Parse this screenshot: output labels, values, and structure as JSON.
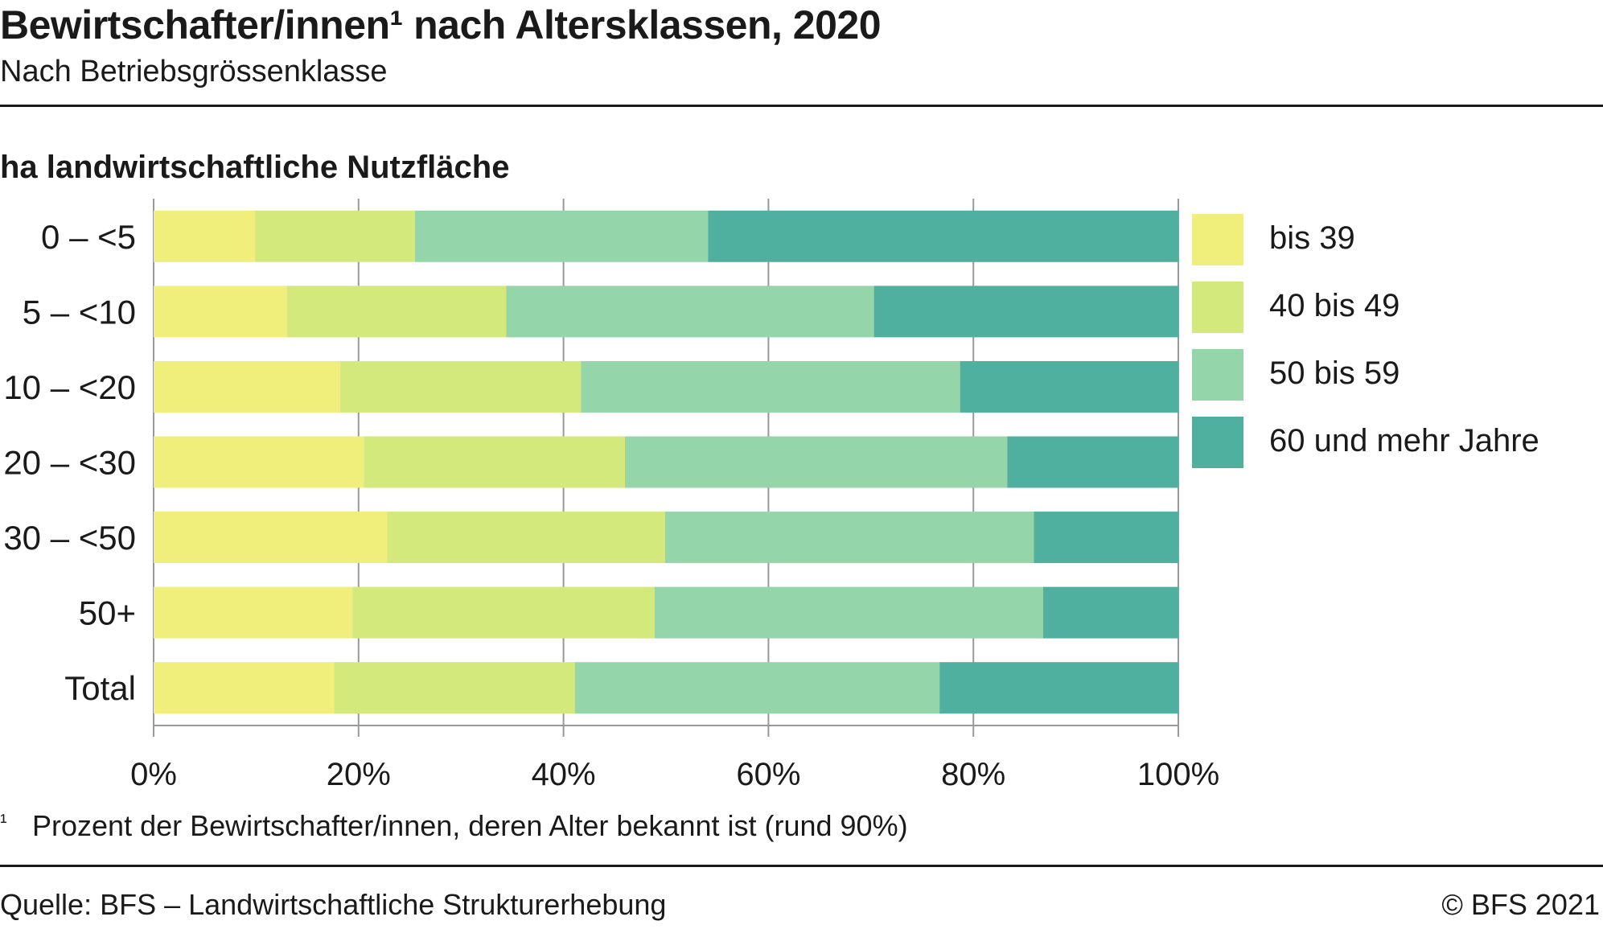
{
  "title": "Bewirtschafter/innen¹ nach Altersklassen, 2020",
  "subtitle": "Nach Betriebsgrössenklasse",
  "footnote": {
    "mark": "1",
    "text": "Prozent der Bewirtschafter/innen, deren Alter bekannt ist (rund 90%)"
  },
  "source": "Quelle: BFS – Landwirtschaftliche Strukturerhebung",
  "copyright": "© BFS 2021",
  "chart_data": {
    "type": "bar",
    "orientation": "horizontal",
    "stacked": true,
    "ylabel": "ha landwirtschaftliche Nutzfläche",
    "categories": [
      "0 – <5",
      "5 – <10",
      "10 – <20",
      "20 – <30",
      "30 – <50",
      "50+",
      "Total"
    ],
    "series": [
      {
        "name": "bis 39",
        "color": "#f0ef7b",
        "values": [
          9.9,
          13.0,
          18.2,
          20.5,
          22.8,
          19.4,
          17.6
        ]
      },
      {
        "name": "40 bis 49",
        "color": "#d3e97c",
        "values": [
          15.6,
          21.4,
          23.5,
          25.5,
          27.1,
          29.5,
          23.5
        ]
      },
      {
        "name": "50 bis 59",
        "color": "#94d5aa",
        "values": [
          28.6,
          35.9,
          37.0,
          37.3,
          36.0,
          37.9,
          35.6
        ]
      },
      {
        "name": "60 und mehr Jahre",
        "color": "#50b0a0",
        "values": [
          45.9,
          29.7,
          21.3,
          16.7,
          14.1,
          13.2,
          23.3
        ]
      }
    ],
    "xlim": [
      0,
      100
    ],
    "xticks": [
      "0%",
      "20%",
      "40%",
      "60%",
      "80%",
      "100%"
    ],
    "grid": true,
    "legend_position": "right"
  }
}
